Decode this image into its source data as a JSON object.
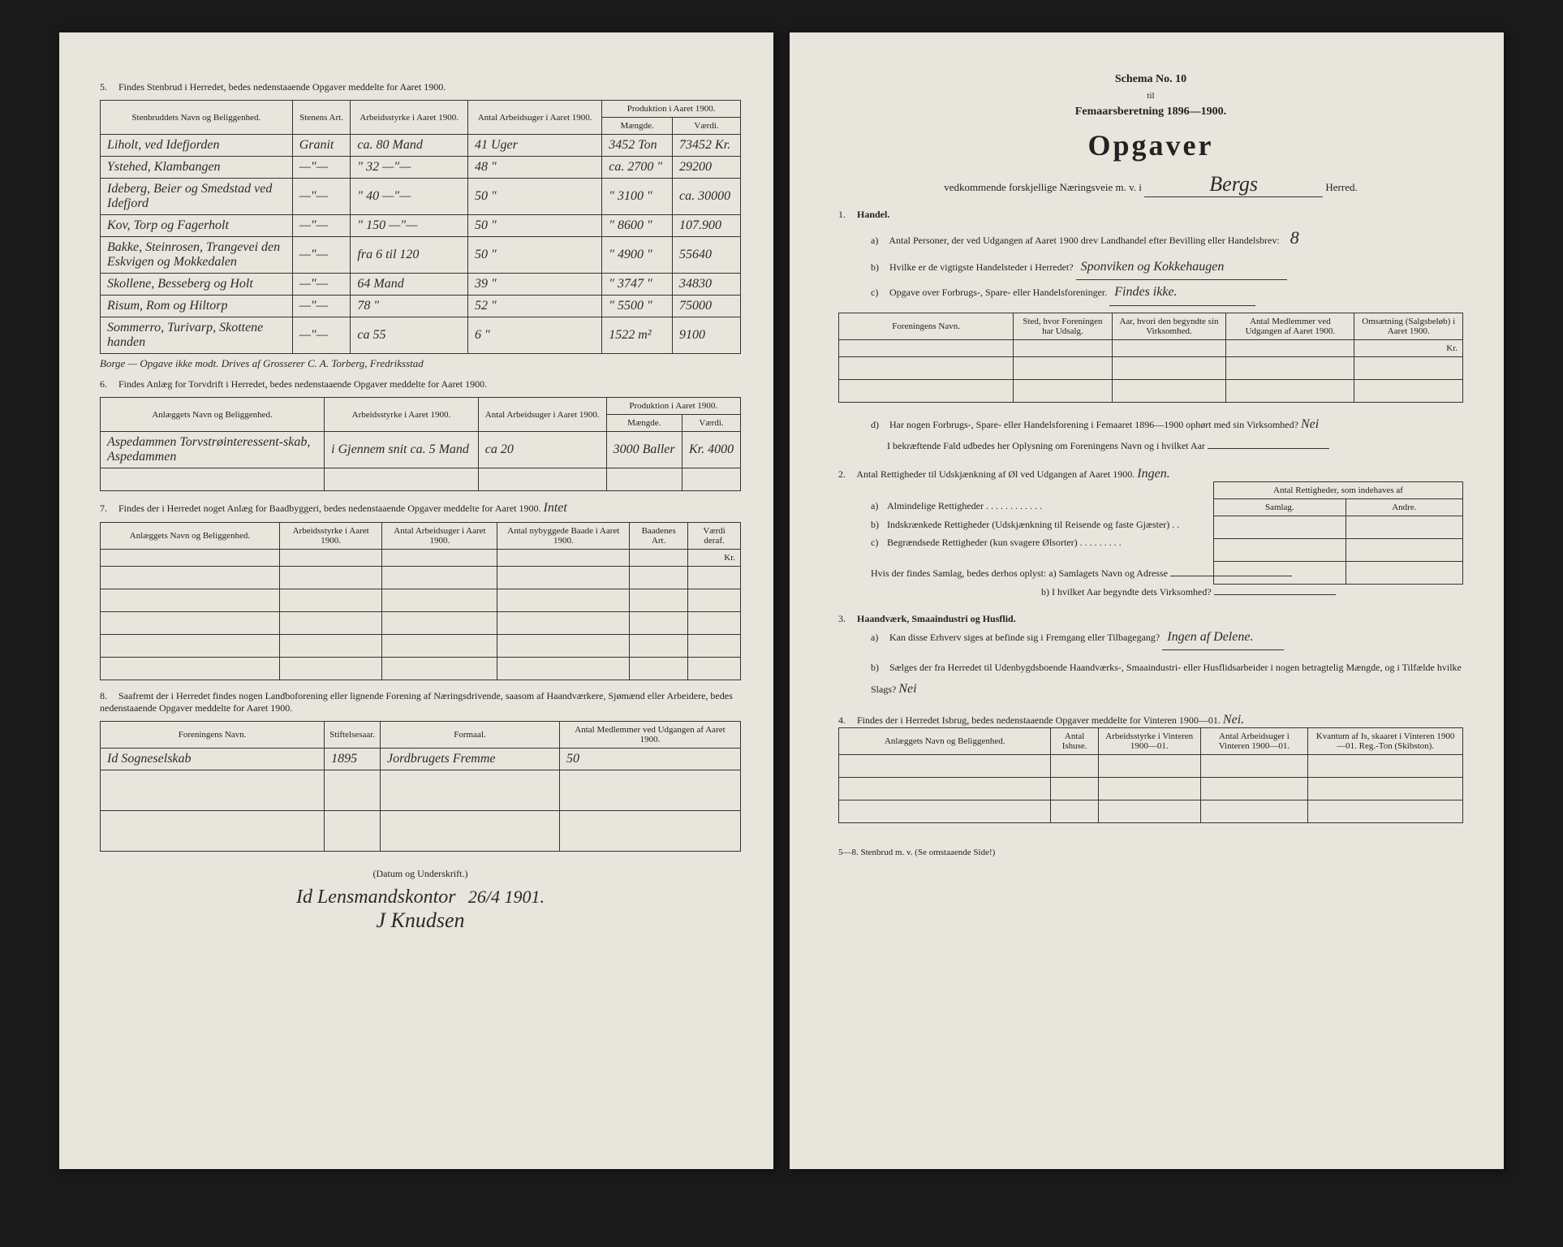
{
  "leftPage": {
    "q5": {
      "intro_num": "5.",
      "intro": "Findes Stenbrud i Herredet, bedes nedenstaaende Opgaver meddelte for Aaret 1900.",
      "headers": {
        "col1": "Stenbruddets Navn og Beliggenhed.",
        "col2": "Stenens Art.",
        "col3": "Arbeidsstyrke i Aaret 1900.",
        "col4": "Antal Arbeidsuger i Aaret 1900.",
        "prod_group": "Produktion i Aaret 1900.",
        "col5": "Mængde.",
        "col6": "Værdi."
      },
      "rows": [
        {
          "c1": "Liholt, ved Idefjorden",
          "c2": "Granit",
          "c3": "ca. 80 Mand",
          "c4": "41 Uger",
          "c5": "3452 Ton",
          "c6": "73452 Kr."
        },
        {
          "c1": "Ystehed, Klambangen",
          "c2": "—\"—",
          "c3": "\" 32 —\"—",
          "c4": "48 \"",
          "c5": "ca. 2700 \"",
          "c6": "29200"
        },
        {
          "c1": "Ideberg, Beier og Smedstad ved Idefjord",
          "c2": "—\"—",
          "c3": "\" 40 —\"—",
          "c4": "50 \"",
          "c5": "\" 3100 \"",
          "c6": "ca. 30000"
        },
        {
          "c1": "Kov, Torp og Fagerholt",
          "c2": "—\"—",
          "c3": "\" 150 —\"—",
          "c4": "50 \"",
          "c5": "\" 8600 \"",
          "c6": "107.900"
        },
        {
          "c1": "Bakke, Steinrosen, Trangevei den Eskvigen og Mokkedalen",
          "c2": "—\"—",
          "c3": "fra 6 til 120",
          "c4": "50 \"",
          "c5": "\" 4900 \"",
          "c6": "55640"
        },
        {
          "c1": "Skollene, Besseberg og Holt",
          "c2": "—\"—",
          "c3": "64 Mand",
          "c4": "39 \"",
          "c5": "\" 3747 \"",
          "c6": "34830"
        },
        {
          "c1": "Risum, Rom og Hiltorp",
          "c2": "—\"—",
          "c3": "78 \"",
          "c4": "52 \"",
          "c5": "\" 5500 \"",
          "c6": "75000"
        },
        {
          "c1": "Sommerro, Turivarp, Skottene handen",
          "c2": "—\"—",
          "c3": "ca 55",
          "c4": "6 \"",
          "c5": "1522 m²",
          "c6": "9100"
        }
      ],
      "footnote": "Borge — Opgave ikke modt. Drives af Grosserer C. A. Torberg, Fredriksstad"
    },
    "q6": {
      "intro_num": "6.",
      "intro": "Findes Anlæg for Torvdrift i Herredet, bedes nedenstaaende Opgaver meddelte for Aaret 1900.",
      "headers": {
        "col1": "Anlæggets Navn og Beliggenhed.",
        "col2": "Arbeidsstyrke i Aaret 1900.",
        "col3": "Antal Arbeidsuger i Aaret 1900.",
        "prod_group": "Produktion i Aaret 1900.",
        "col4": "Mængde.",
        "col5": "Værdi."
      },
      "rows": [
        {
          "c1": "Aspedammen Torvstrøinteressent-skab, Aspedammen",
          "c2": "i Gjennem snit ca. 5 Mand",
          "c3": "ca 20",
          "c4": "3000 Baller",
          "c5": "Kr.\n4000"
        }
      ]
    },
    "q7": {
      "intro_num": "7.",
      "intro": "Findes der i Herredet noget Anlæg for Baadbyggeri, bedes nedenstaaende Opgaver meddelte for Aaret 1900.",
      "answer": "Intet",
      "headers": {
        "col1": "Anlæggets Navn og Beliggenhed.",
        "col2": "Arbeidsstyrke i Aaret 1900.",
        "col3": "Antal Arbeidsuger i Aaret 1900.",
        "col4": "Antal nybyggede Baade i Aaret 1900.",
        "col5": "Baadenes Art.",
        "col6": "Værdi deraf."
      }
    },
    "q8": {
      "intro_num": "8.",
      "intro": "Saafremt der i Herredet findes nogen Landboforening eller lignende Forening af Næringsdrivende, saasom af Haandværkere, Sjømænd eller Arbeidere, bedes nedenstaaende Opgaver meddelte for Aaret 1900.",
      "headers": {
        "col1": "Foreningens Navn.",
        "col2": "Stiftelsesaar.",
        "col3": "Formaal.",
        "col4": "Antal Medlemmer ved Udgangen af Aaret 1900."
      },
      "rows": [
        {
          "c1": "Id Sogneselskab",
          "c2": "1895",
          "c3": "Jordbrugets Fremme",
          "c4": "50"
        }
      ]
    },
    "signature": {
      "label": "(Datum og Underskrift.)",
      "place": "Id Lensmandskontor",
      "date": "26/4 1901.",
      "name": "J Knudsen"
    }
  },
  "rightPage": {
    "schema_line1": "Schema No. 10",
    "schema_line2": "til",
    "schema_line3": "Femaarsberetning 1896—1900.",
    "title": "Opgaver",
    "subtitle_pre": "vedkommende forskjellige Næringsveie m. v. i",
    "district": "Bergs",
    "subtitle_post": "Herred.",
    "q1": {
      "num": "1.",
      "title": "Handel.",
      "a_label": "a)",
      "a_text": "Antal Personer, der ved Udgangen af Aaret 1900 drev Landhandel efter Bevilling eller Handelsbrev:",
      "a_value": "8",
      "b_label": "b)",
      "b_text": "Hvilke er de vigtigste Handelsteder i Herredet?",
      "b_value": "Sponviken og Kokkehaugen",
      "c_label": "c)",
      "c_text": "Opgave over Forbrugs-, Spare- eller Handelsforeninger.",
      "c_value": "Findes ikke.",
      "headers": {
        "col1": "Foreningens Navn.",
        "col2": "Sted, hvor Foreningen har Udsalg.",
        "col3": "Aar, hvori den begyndte sin Virksomhed.",
        "col4": "Antal Medlemmer ved Udgangen af Aaret 1900.",
        "col5": "Omsætning (Salgsbeløb) i Aaret 1900."
      },
      "kr": "Kr.",
      "d_label": "d)",
      "d_text": "Har nogen Forbrugs-, Spare- eller Handelsforening i Femaaret 1896—1900 ophørt med sin Virksomhed?",
      "d_value": "Nei",
      "d_text2": "I bekræftende Fald udbedes her Oplysning om Foreningens Navn og i hvilket Aar"
    },
    "q2": {
      "num": "2.",
      "intro": "Antal Rettigheder til Udskjænkning af Øl ved Udgangen af Aaret 1900.",
      "value": "Ingen.",
      "header_group": "Antal Rettigheder, som indehaves af",
      "col1": "Samlag.",
      "col2": "Andre.",
      "a_label": "a)",
      "a_text": "Almindelige Rettigheder",
      "b_label": "b)",
      "b_text": "Indskrænkede Rettigheder (Udskjænkning til Reisende og faste Gjæster)",
      "c_label": "c)",
      "c_text": "Begrændsede Rettigheder (kun svagere Ølsorter)",
      "hvis_a": "Hvis der findes Samlag, bedes derhos oplyst: a) Samlagets Navn og Adresse",
      "hvis_b": "b) I hvilket Aar begyndte dets Virksomhed?"
    },
    "q3": {
      "num": "3.",
      "title": "Haandværk, Smaaindustri og Husflid.",
      "a_label": "a)",
      "a_text": "Kan disse Erhverv siges at befinde sig i Fremgang eller Tilbagegang?",
      "a_value": "Ingen af Delene.",
      "b_label": "b)",
      "b_text": "Sælges der fra Herredet til Udenbygdsboende Haandværks-, Smaaindustri- eller Husflidsarbeider i nogen betragtelig Mængde, og i Tilfælde hvilke Slags?",
      "b_value": "Nei"
    },
    "q4": {
      "num": "4.",
      "intro": "Findes der i Herredet Isbrug, bedes nedenstaaende Opgaver meddelte for Vinteren 1900—01.",
      "value": "Nei.",
      "headers": {
        "col1": "Anlæggets Navn og Beliggenhed.",
        "col2": "Antal Ishuse.",
        "col3": "Arbeidsstyrke i Vinteren 1900—01.",
        "col4": "Antal Arbeidsuger i Vinteren 1900—01.",
        "col5": "Kvantum af Is, skaaret i Vinteren 1900—01. Reg.-Ton (Skibston)."
      }
    },
    "footer": "5—8. Stenbrud m. v.   (Se omstaaende Side!)"
  }
}
